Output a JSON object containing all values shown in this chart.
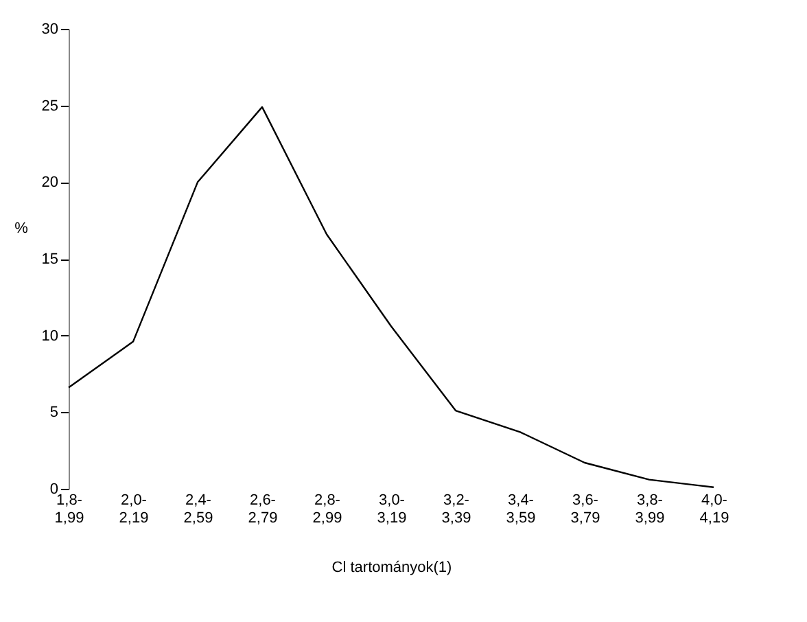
{
  "chart_data": {
    "type": "line",
    "xlabel": "Cl tartományok(1)",
    "ylabel": "%",
    "categories": [
      "1,8-1,99",
      "2,0-2,19",
      "2,4-2,59",
      "2,6-2,79",
      "2,8-2,99",
      "3,0-3,19",
      "3,2-3,39",
      "3,4-3,59",
      "3,6-3,79",
      "3,8-3,99",
      "4,0-4,19"
    ],
    "series": [
      {
        "color": "#000000",
        "values": [
          6.6,
          9.6,
          20.0,
          24.9,
          16.6,
          10.6,
          5.1,
          3.7,
          1.7,
          0.6,
          0.1
        ]
      }
    ],
    "ylim": [
      0,
      30
    ],
    "yticks": [
      0,
      5,
      10,
      15,
      20,
      25,
      30
    ],
    "grid": false,
    "legend": false,
    "marker": "none",
    "line_style": "solid"
  }
}
